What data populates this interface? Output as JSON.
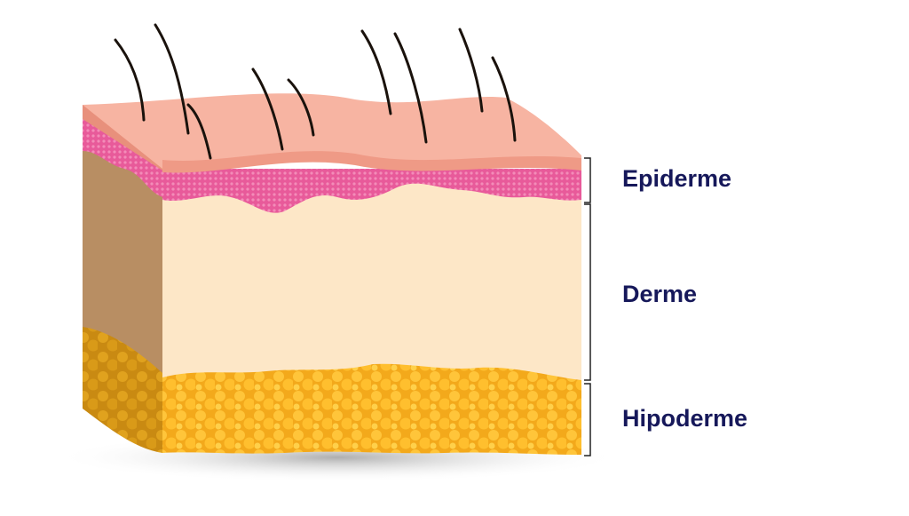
{
  "layers": [
    "Epiderme",
    "Derme",
    "Hipoderme"
  ]
}
